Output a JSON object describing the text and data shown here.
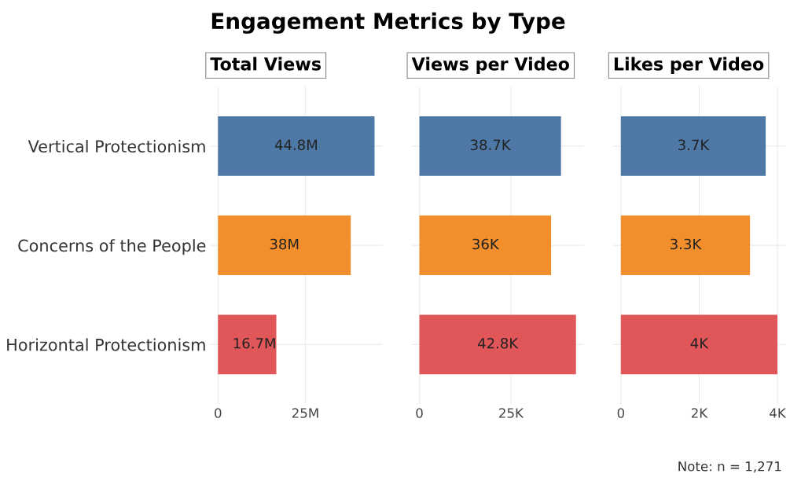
{
  "chart_data": [
    {
      "type": "bar",
      "orientation": "horizontal",
      "title": "Engagement Metrics by Type",
      "subtitle": "Total Views",
      "categories": [
        "Vertical Protectionism",
        "Concerns of the People",
        "Horizontal Protectionism"
      ],
      "values": [
        44.8,
        38,
        16.7
      ],
      "value_labels": [
        "44.8M",
        "38M",
        "16.7M"
      ],
      "colors": [
        "#4e79a7",
        "#f28e2b",
        "#e15759"
      ],
      "xlim": [
        -2.24,
        47.04
      ],
      "xticks": [
        0,
        {
          "value": 25,
          "label": "25M"
        }
      ],
      "grid": true
    },
    {
      "type": "bar",
      "orientation": "horizontal",
      "subtitle": "Views per Video",
      "categories": [
        null,
        null,
        null
      ],
      "values": [
        38.7,
        36,
        42.8
      ],
      "value_labels": [
        "38.7K",
        "36K",
        "42.8K"
      ],
      "colors": [
        "#4e79a7",
        "#f28e2b",
        "#e15759"
      ],
      "xlim": [
        -2.14,
        44.94
      ],
      "xticks": [
        0,
        {
          "value": 25,
          "label": "25K"
        }
      ],
      "grid": true
    },
    {
      "type": "bar",
      "orientation": "horizontal",
      "subtitle": "Likes per Video",
      "categories": [
        null,
        null,
        null
      ],
      "values": [
        3.7,
        3.3,
        4
      ],
      "value_labels": [
        "3.7K",
        "3.3K",
        "4K"
      ],
      "colors": [
        "#4e79a7",
        "#f28e2b",
        "#e15759"
      ],
      "xlim": [
        -0.2,
        4.2
      ],
      "xticks": [
        0,
        {
          "value": 2,
          "label": "2K"
        },
        {
          "value": 4,
          "label": "4K"
        }
      ],
      "grid": true,
      "annotations": [
        "Note: n = 1,271"
      ]
    }
  ]
}
